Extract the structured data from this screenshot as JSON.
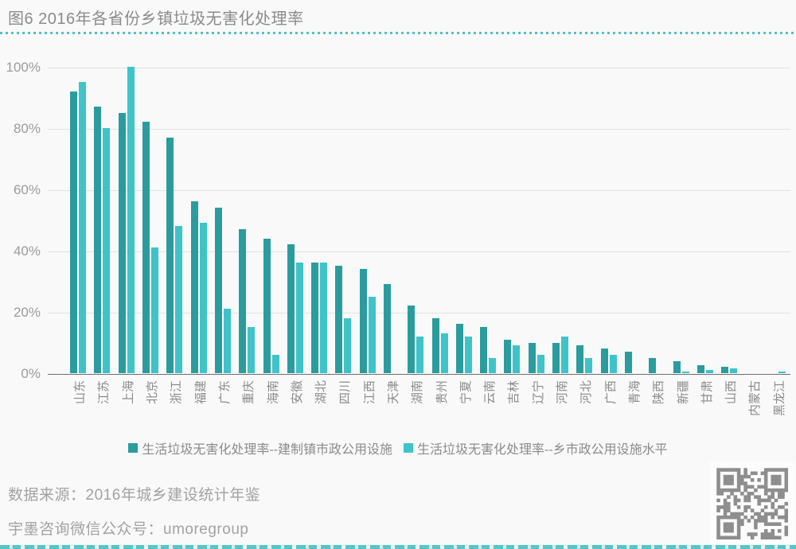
{
  "title": "图6 2016年各省份乡镇垃圾无害化处理率",
  "footer": {
    "source_line": "数据来源：2016年城乡建设统计年鉴",
    "wechat_line": "宇墨咨询微信公众号：umoregroup"
  },
  "colors": {
    "series1": "#2b9c9d",
    "series2": "#3fc3c8",
    "grid": "#e2e2e2",
    "axis_line": "#6e6e6e",
    "text_gray": "#8b8b8b",
    "qr_gray": "#8e8e8e"
  },
  "chart_data": {
    "type": "bar",
    "title": "图6 2016年各省份乡镇垃圾无害化处理率",
    "categories": [
      "山东",
      "江苏",
      "上海",
      "北京",
      "浙江",
      "福建",
      "广东",
      "重庆",
      "海南",
      "安徽",
      "湖北",
      "四川",
      "江西",
      "天津",
      "湖南",
      "贵州",
      "宁夏",
      "云南",
      "吉林",
      "辽宁",
      "河南",
      "河北",
      "广西",
      "青海",
      "陕西",
      "新疆",
      "甘肃",
      "山西",
      "内蒙古",
      "黑龙江"
    ],
    "series": [
      {
        "name": "生活垃圾无害化处理率--建制镇市政公用设施",
        "color": "#2b9c9d",
        "values": [
          92,
          87,
          85,
          82,
          77,
          56,
          54,
          47,
          44,
          42,
          36,
          35,
          34,
          29,
          22,
          18,
          16,
          15,
          11,
          10,
          10,
          9,
          8,
          7,
          5,
          4,
          2.5,
          2,
          0,
          0
        ]
      },
      {
        "name": "生活垃圾无害化处理率--乡市政公用设施水平",
        "color": "#3fc3c8",
        "values": [
          95,
          80,
          100,
          41,
          48,
          49,
          21,
          15,
          6,
          36,
          36,
          18,
          25,
          0,
          12,
          13,
          12,
          5,
          9,
          6,
          12,
          5,
          6,
          0,
          0,
          0.5,
          1,
          1.5,
          0,
          0.5
        ]
      }
    ],
    "y_ticks": [
      "100%",
      "80%",
      "60%",
      "40%",
      "20%",
      "0%"
    ],
    "ylim": [
      0,
      100
    ],
    "grid": true,
    "legend_position": "bottom",
    "xlabel": "",
    "ylabel": ""
  }
}
